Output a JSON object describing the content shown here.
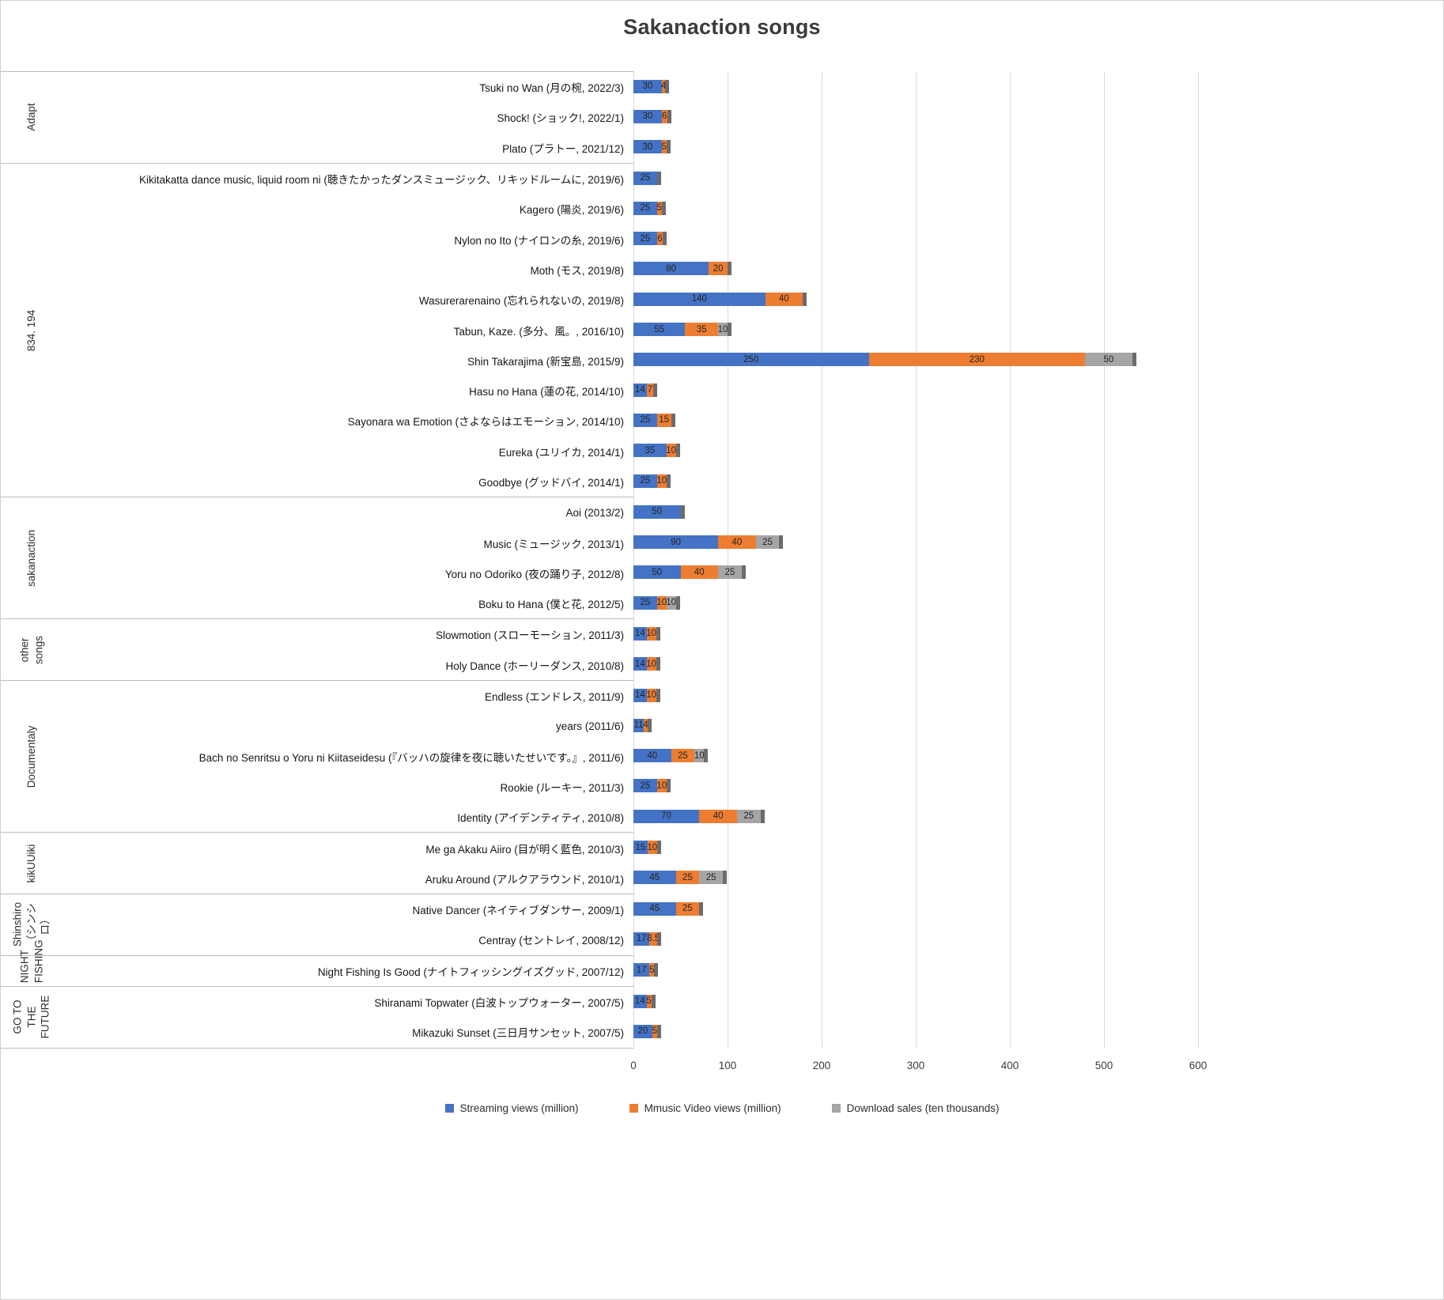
{
  "title": "Sakanaction songs",
  "chart_data": {
    "type": "bar",
    "orientation": "horizontal",
    "stacked": true,
    "xlim": [
      0,
      600
    ],
    "x_ticks": [
      0,
      100,
      200,
      300,
      400,
      500,
      600
    ],
    "grid": "vertical",
    "legend_position": "bottom",
    "series_names": [
      "Streaming views (million)",
      "Mmusic Video views (million)",
      "Download sales (ten thousands)"
    ],
    "series_keys": [
      "streaming-views",
      "music-video-views",
      "download-sales"
    ],
    "series_colors": [
      "#4472C4",
      "#ED7D31",
      "#A5A5A5"
    ],
    "groups": [
      {
        "label": "Adapt",
        "songs": [
          {
            "label": "Tsuki no Wan (月の椀, 2022/3)",
            "values": [
              30,
              4,
              0
            ]
          },
          {
            "label": "Shock! (ショック!, 2022/1)",
            "values": [
              30,
              6,
              0
            ]
          },
          {
            "label": "Plato (プラトー, 2021/12)",
            "values": [
              30,
              5,
              0
            ]
          }
        ]
      },
      {
        "label": "834. 194",
        "songs": [
          {
            "label": "Kikitakatta dance music, liquid room ni (聴きたかったダンスミュージック、リキッドルームに, 2019/6)",
            "values": [
              25,
              0,
              0
            ]
          },
          {
            "label": "Kagero (陽炎, 2019/6)",
            "values": [
              25,
              5,
              0
            ]
          },
          {
            "label": "Nylon no Ito (ナイロンの糸, 2019/6)",
            "values": [
              25,
              6,
              0
            ]
          },
          {
            "label": "Moth (モス, 2019/8)",
            "values": [
              80,
              20,
              0
            ]
          },
          {
            "label": "Wasurerarenaino (忘れられないの, 2019/8)",
            "values": [
              140,
              40,
              0
            ]
          },
          {
            "label": "Tabun, Kaze. (多分、風。, 2016/10)",
            "values": [
              55,
              35,
              10
            ]
          },
          {
            "label": "Shin Takarajima (新宝島, 2015/9)",
            "values": [
              250,
              230,
              50
            ]
          },
          {
            "label": "Hasu no Hana (蓮の花, 2014/10)",
            "values": [
              14,
              7,
              0
            ]
          },
          {
            "label": "Sayonara wa Emotion (さよならはエモーション, 2014/10)",
            "values": [
              25,
              15,
              0
            ]
          },
          {
            "label": "Eureka (ユリイカ, 2014/1)",
            "values": [
              35,
              10,
              0
            ]
          },
          {
            "label": "Goodbye (グッドバイ, 2014/1)",
            "values": [
              25,
              10,
              0
            ]
          }
        ]
      },
      {
        "label": "sakanaction",
        "songs": [
          {
            "label": "Aoi (2013/2)",
            "values": [
              50,
              0,
              0
            ]
          },
          {
            "label": "Music (ミュージック, 2013/1)",
            "values": [
              90,
              40,
              25
            ]
          },
          {
            "label": "Yoru no Odoriko (夜の踊り子, 2012/8)",
            "values": [
              50,
              40,
              25
            ]
          },
          {
            "label": "Boku to Hana (僕と花, 2012/5)",
            "values": [
              25,
              10,
              10
            ]
          }
        ]
      },
      {
        "label": "other songs",
        "songs": [
          {
            "label": "Slowmotion (スローモーション, 2011/3)",
            "values": [
              14,
              10,
              0
            ]
          },
          {
            "label": "Holy Dance (ホーリーダンス, 2010/8)",
            "values": [
              14,
              10,
              0
            ]
          }
        ]
      },
      {
        "label": "Documentaly",
        "songs": [
          {
            "label": "Endless (エンドレス, 2011/9)",
            "values": [
              14,
              10,
              0
            ]
          },
          {
            "label": "years (2011/6)",
            "values": [
              11,
              4,
              0
            ]
          },
          {
            "label": "Bach no Senritsu o Yoru ni Kiitaseidesu (『バッハの旋律を夜に聴いたせいです。』, 2011/6)",
            "values": [
              40,
              25,
              10
            ]
          },
          {
            "label": "Rookie (ルーキー, 2011/3)",
            "values": [
              25,
              10,
              0
            ]
          },
          {
            "label": "Identity (アイデンティティ, 2010/8)",
            "values": [
              70,
              40,
              25
            ]
          }
        ]
      },
      {
        "label": "kikUUiki",
        "songs": [
          {
            "label": "Me ga Akaku Aiiro (目が明く藍色, 2010/3)",
            "values": [
              15,
              10,
              0
            ]
          },
          {
            "label": "Aruku Around (アルクアラウンド, 2010/1)",
            "values": [
              45,
              25,
              25
            ]
          }
        ]
      },
      {
        "label": "Shinshiro（シンシロ）",
        "songs": [
          {
            "label": "Native Dancer (ネイティブダンサー, 2009/1)",
            "values": [
              45,
              25,
              0
            ]
          },
          {
            "label": "Centray (セントレイ, 2008/12)",
            "values": [
              17,
              8.5,
              0
            ]
          }
        ]
      },
      {
        "label": "NIGHT FISHING",
        "songs": [
          {
            "label": "Night Fishing Is Good (ナイトフィッシングイズグッド, 2007/12)",
            "values": [
              17,
              5,
              0
            ]
          }
        ]
      },
      {
        "label": "GO TO THE FUTURE",
        "songs": [
          {
            "label": "Shiranami Topwater (白波トップウォーター, 2007/5)",
            "values": [
              14,
              5,
              0
            ]
          },
          {
            "label": "Mikazuki Sunset (三日月サンセット, 2007/5)",
            "values": [
              20,
              5,
              0
            ]
          }
        ]
      }
    ]
  }
}
